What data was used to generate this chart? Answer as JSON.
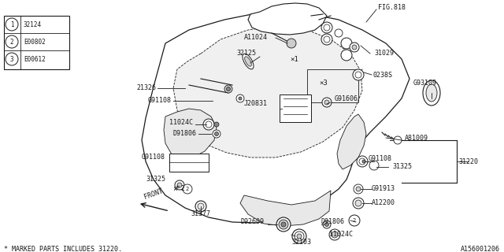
{
  "bg_color": "#ffffff",
  "line_color": "#1a1a1a",
  "diagram_id": "A156001206",
  "footnote": "* MARKED PARTS INCLUDES 31220.",
  "legend": [
    {
      "num": "1",
      "code": "32124"
    },
    {
      "num": "2",
      "code": "E00802"
    },
    {
      "num": "3",
      "code": "E00612"
    }
  ],
  "figsize": [
    6.4,
    3.2
  ],
  "dpi": 100
}
